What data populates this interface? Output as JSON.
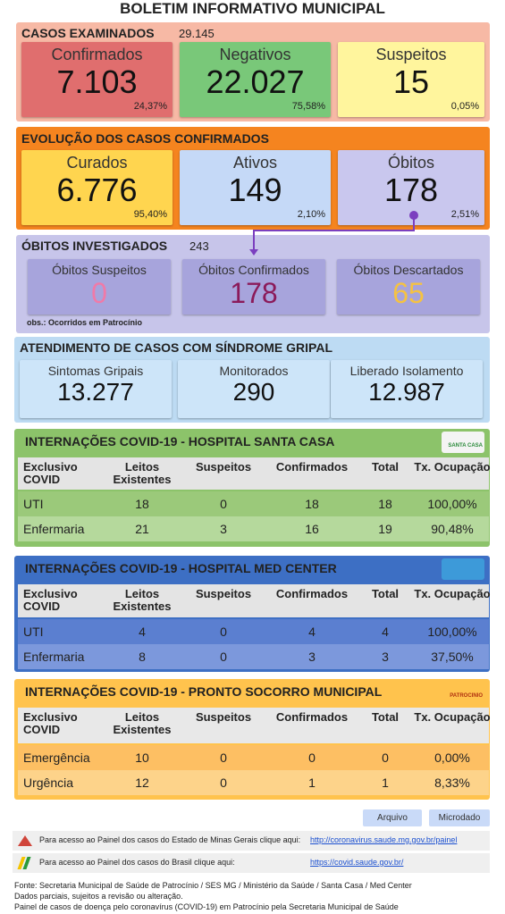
{
  "title": "BOLETIM INFORMATIVO MUNICIPAL",
  "examined": {
    "label": "CASOS EXAMINADOS",
    "total": "29.145",
    "cards": [
      {
        "label": "Confirmados",
        "value": "7.103",
        "percent": "24,37%"
      },
      {
        "label": "Negativos",
        "value": "22.027",
        "percent": "75,58%"
      },
      {
        "label": "Suspeitos",
        "value": "15",
        "percent": "0,05%"
      }
    ]
  },
  "evolution": {
    "label": "EVOLUÇÃO DOS CASOS CONFIRMADOS",
    "cards": [
      {
        "label": "Curados",
        "value": "6.776",
        "percent": "95,40%"
      },
      {
        "label": "Ativos",
        "value": "149",
        "percent": "2,10%"
      },
      {
        "label": "Óbitos",
        "value": "178",
        "percent": "2,51%"
      }
    ]
  },
  "investigated": {
    "label": "ÓBITOS INVESTIGADOS",
    "total": "243",
    "cards": [
      {
        "label": "Óbitos Suspeitos",
        "value": "0"
      },
      {
        "label": "Óbitos Confirmados",
        "value": "178"
      },
      {
        "label": "Óbitos Descartados",
        "value": "65"
      }
    ],
    "note": "obs.: Ocorridos em Patrocínio"
  },
  "flu": {
    "label": "ATENDIMENTO DE CASOS COM SÍNDROME GRIPAL",
    "cards": [
      {
        "label": "Sintomas Gripais",
        "value": "13.277"
      },
      {
        "label": "Monitorados",
        "value": "290"
      },
      {
        "label": "Liberado Isolamento",
        "value": "12.987"
      }
    ]
  },
  "hospitals": [
    {
      "title": "INTERNAÇÕES COVID-19 - HOSPITAL SANTA CASA",
      "logo": "SANTA CASA",
      "headers": [
        "Exclusivo COVID",
        "Leitos Existentes",
        "Suspeitos",
        "Confirmados",
        "Total",
        "Tx. Ocupação"
      ],
      "rows": [
        [
          "UTI",
          18,
          0,
          18,
          18,
          "100,00%"
        ],
        [
          "Enfermaria",
          21,
          3,
          16,
          19,
          "90,48%"
        ]
      ]
    },
    {
      "title": "INTERNAÇÕES COVID-19 - HOSPITAL MED CENTER",
      "headers": [
        "Exclusivo COVID",
        "Leitos Existentes",
        "Suspeitos",
        "Confirmados",
        "Total",
        "Tx. Ocupação"
      ],
      "rows": [
        [
          "UTI",
          4,
          0,
          4,
          4,
          "100,00%"
        ],
        [
          "Enfermaria",
          8,
          0,
          3,
          3,
          "37,50%"
        ]
      ]
    },
    {
      "title": "INTERNAÇÕES COVID-19 - PRONTO SOCORRO MUNICIPAL",
      "logo": "PATROCINIO",
      "headers": [
        "Exclusivo COVID",
        "Leitos Existentes",
        "Suspeitos",
        "Confirmados",
        "Total",
        "Tx. Ocupação"
      ],
      "rows": [
        [
          "Emergência",
          10,
          0,
          0,
          0,
          "0,00%"
        ],
        [
          "Urgência",
          12,
          0,
          1,
          1,
          "8,33%"
        ]
      ]
    }
  ],
  "buttons": [
    "Arquivo",
    "Microdado"
  ],
  "links": [
    {
      "text": "Para acesso ao Painel dos casos do Estado de Minas Gerais clique aqui:",
      "url": "http://coronavirus.saude.mg.gov.br/painel"
    },
    {
      "text": "Para acesso ao Painel dos casos do Brasil clique aqui:",
      "url": "https://covid.saude.gov.br/"
    }
  ],
  "footer": [
    "Fonte: Secretaria Municipal de Saúde de Patrocínio / SES MG / Ministério da Saúde / Santa Casa / Med Center",
    "Dados parciais, sujeitos a revisão ou alteração.",
    "Painel de casos de doença pelo coronavírus (COVID-19) em Patrocínio pela Secretaria Municipal de Saúde"
  ]
}
